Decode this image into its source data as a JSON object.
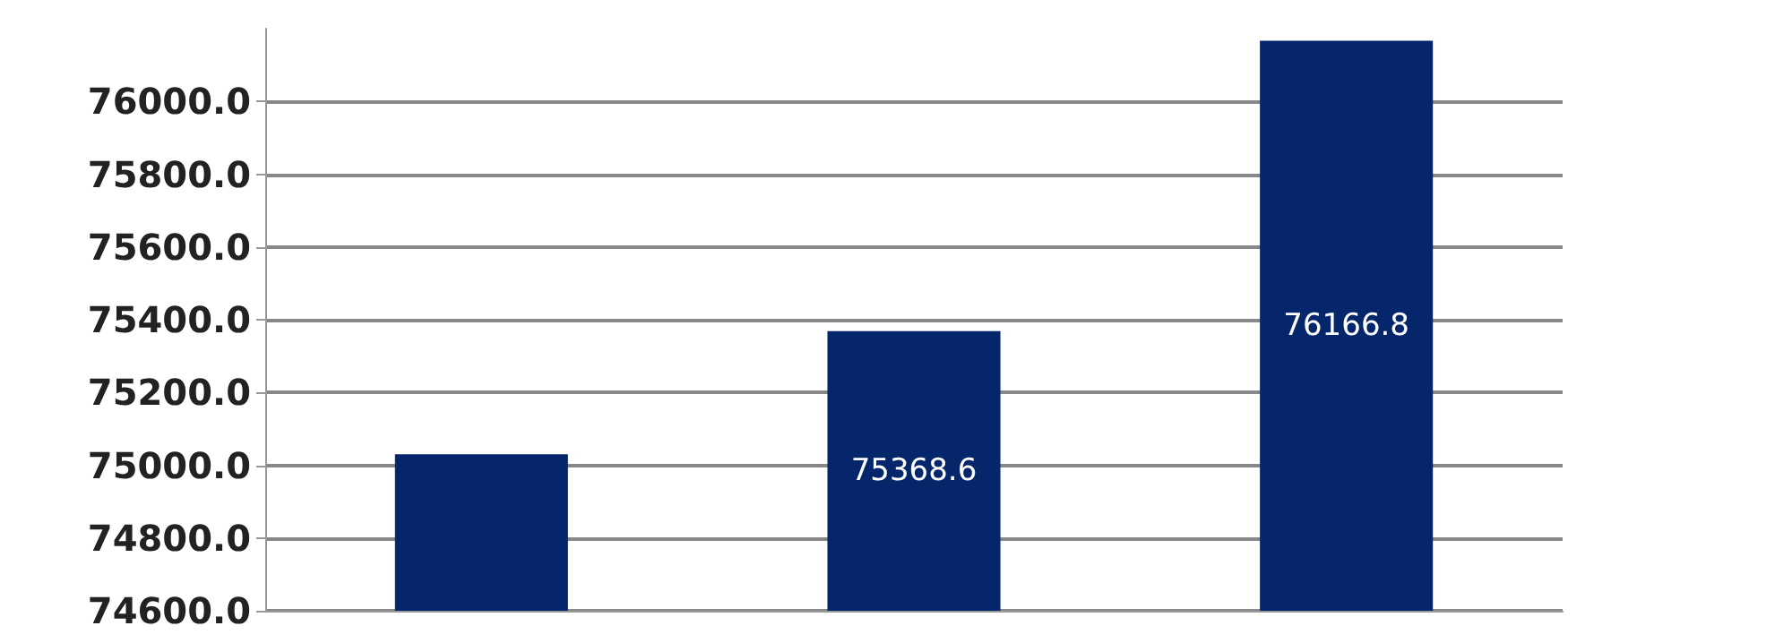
{
  "chart_data": {
    "type": "bar",
    "categories": [
      null,
      null,
      null
    ],
    "values": [
      75030,
      75368.6,
      76166.8
    ],
    "value_labels": [
      null,
      "75368.6",
      "76166.8"
    ],
    "color": "#06266b",
    "ylim": [
      74600,
      76200
    ],
    "yticks": [
      {
        "value": 74600,
        "label": "74600.0"
      },
      {
        "value": 74800,
        "label": "74800.0"
      },
      {
        "value": 75000,
        "label": "75000.0"
      },
      {
        "value": 75200,
        "label": "75200.0"
      },
      {
        "value": 75400,
        "label": "75400.0"
      },
      {
        "value": 75600,
        "label": "75600.0"
      },
      {
        "value": 75800,
        "label": "75800.0"
      },
      {
        "value": 76000,
        "label": "76000.0"
      }
    ],
    "grid": "y"
  }
}
